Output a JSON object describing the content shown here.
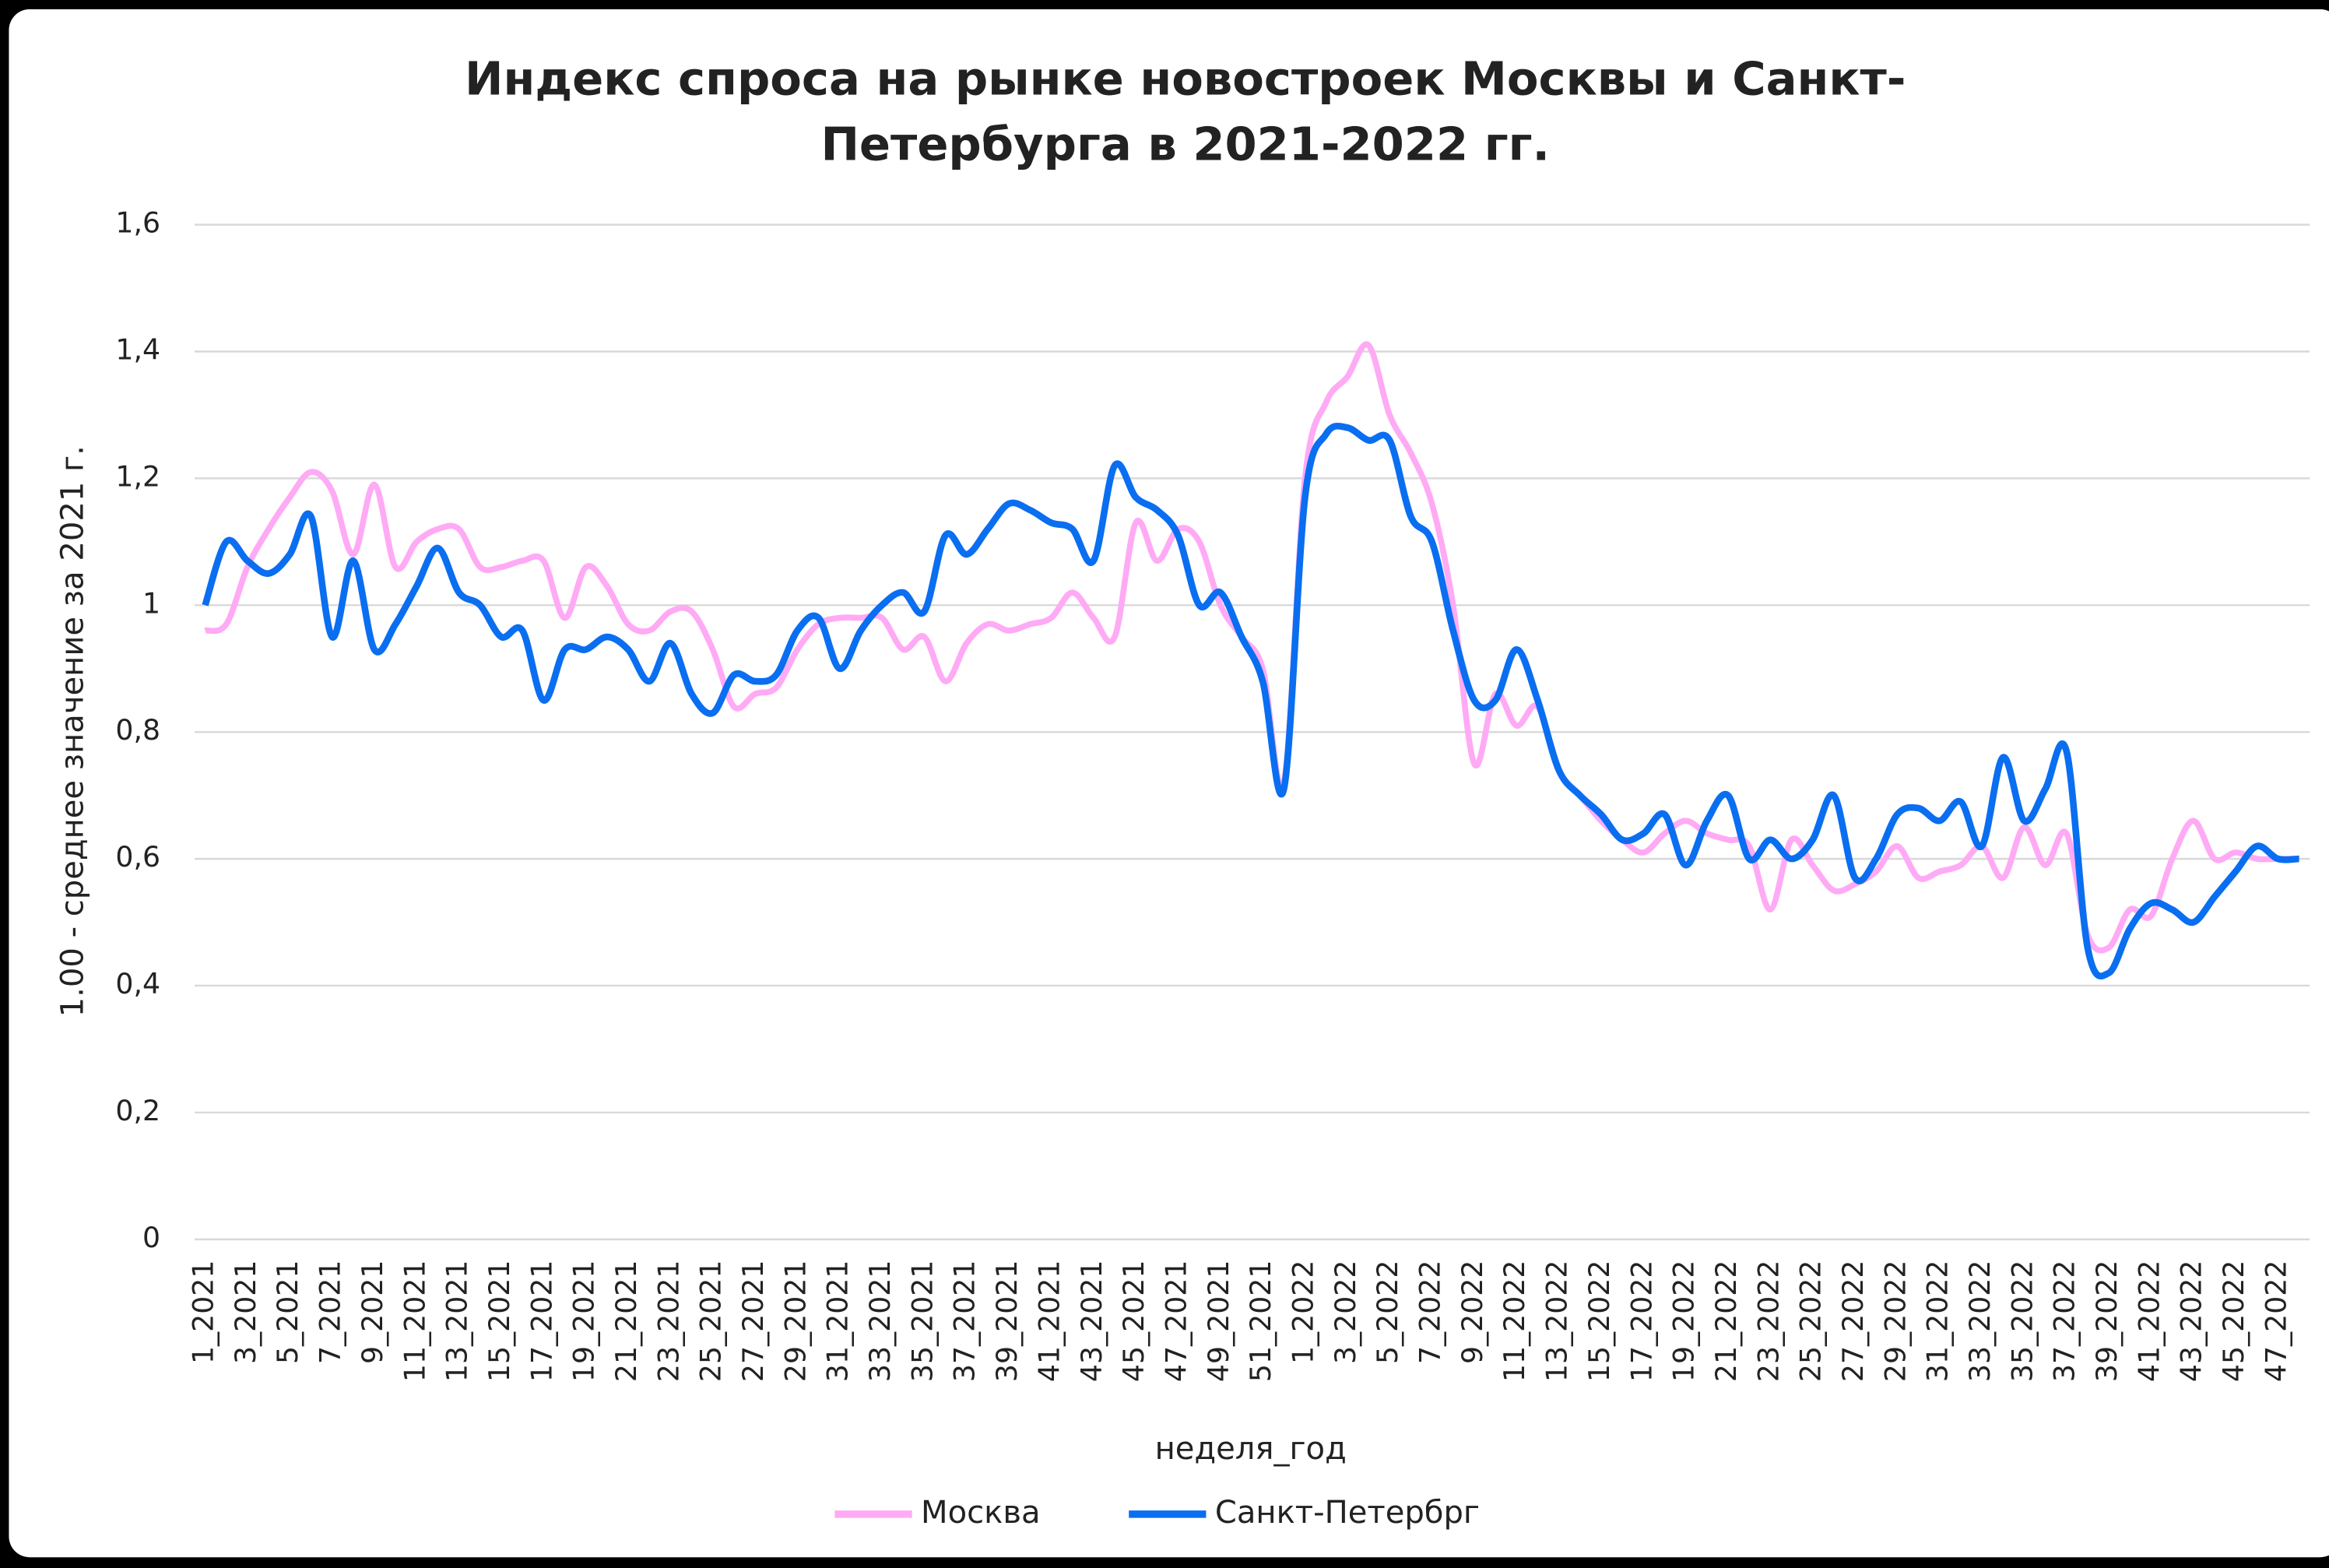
{
  "chart_data": {
    "type": "line",
    "title": [
      "Индекс спроса на рынке новостроек Москвы и Санкт-",
      "Петербурга в 2021-2022 гг."
    ],
    "x_label": "неделя_год",
    "y_label": "1.00 - среднее значение за 2021 г.",
    "categories": [
      "1_2021",
      null,
      "3_2021",
      null,
      "5_2021",
      null,
      "7_2021",
      null,
      "9_2021",
      null,
      "11_2021",
      null,
      "13_2021",
      null,
      "15_2021",
      null,
      "17_2021",
      null,
      "19_2021",
      null,
      "21_2021",
      null,
      "23_2021",
      null,
      "25_2021",
      null,
      "27_2021",
      null,
      "29_2021",
      null,
      "31_2021",
      null,
      "33_2021",
      null,
      "35_2021",
      null,
      "37_2021",
      null,
      "39_2021",
      null,
      "41_2021",
      null,
      "43_2021",
      null,
      "45_2021",
      null,
      "47_2021",
      null,
      "49_2021",
      null,
      "51_2021",
      null,
      "1_2022",
      null,
      "3_2022",
      null,
      "5_2022",
      null,
      "7_2022",
      null,
      "9_2022",
      null,
      "11_2022",
      null,
      "13_2022",
      null,
      "15_2022",
      null,
      "17_2022",
      null,
      "19_2022",
      null,
      "21_2022",
      null,
      "23_2022",
      null,
      "25_2022",
      null,
      "27_2022",
      null,
      "29_2022",
      null,
      "31_2022",
      null,
      "33_2022",
      null,
      "35_2022",
      null,
      "37_2022",
      null,
      "39_2022",
      null,
      "41_2022",
      null,
      "43_2022",
      null,
      "45_2022",
      null,
      "47_2022",
      null
    ],
    "series": [
      {
        "name": "Москва",
        "color": "#ffaaf5",
        "values": [
          0.96,
          0.97,
          1.06,
          1.12,
          1.17,
          1.21,
          1.18,
          1.08,
          1.19,
          1.06,
          1.1,
          1.12,
          1.12,
          1.06,
          1.06,
          1.07,
          1.07,
          0.98,
          1.06,
          1.03,
          0.97,
          0.96,
          0.99,
          0.99,
          0.93,
          0.84,
          0.86,
          0.87,
          0.93,
          0.97,
          0.98,
          0.98,
          0.98,
          0.93,
          0.95,
          0.88,
          0.94,
          0.97,
          0.96,
          0.97,
          0.98,
          1.02,
          0.98,
          0.95,
          1.13,
          1.07,
          1.12,
          1.1,
          1.0,
          0.95,
          0.9,
          0.72,
          1.2,
          1.32,
          1.36,
          1.41,
          1.3,
          1.24,
          1.16,
          1.0,
          0.75,
          0.86,
          0.81,
          0.84,
          0.74,
          0.7,
          0.66,
          0.63,
          0.61,
          0.64,
          0.66,
          0.64,
          0.63,
          0.62,
          0.52,
          0.63,
          0.59,
          0.55,
          0.56,
          0.58,
          0.62,
          0.57,
          0.58,
          0.59,
          0.62,
          0.57,
          0.65,
          0.59,
          0.64,
          0.48,
          0.46,
          0.52,
          0.51,
          0.6,
          0.66,
          0.6,
          0.61,
          0.6,
          0.6,
          0.6
        ]
      },
      {
        "name": "Санкт-Петербрг",
        "color": "#0a6ef0",
        "values": [
          1.0,
          1.1,
          1.07,
          1.05,
          1.08,
          1.14,
          0.95,
          1.07,
          0.93,
          0.97,
          1.03,
          1.09,
          1.02,
          1.0,
          0.95,
          0.96,
          0.85,
          0.93,
          0.93,
          0.95,
          0.93,
          0.88,
          0.94,
          0.86,
          0.83,
          0.89,
          0.88,
          0.89,
          0.96,
          0.98,
          0.9,
          0.96,
          1.0,
          1.02,
          0.99,
          1.11,
          1.08,
          1.12,
          1.16,
          1.15,
          1.13,
          1.12,
          1.07,
          1.22,
          1.17,
          1.15,
          1.11,
          1.0,
          1.02,
          0.95,
          0.88,
          0.71,
          1.17,
          1.27,
          1.28,
          1.26,
          1.26,
          1.14,
          1.1,
          0.96,
          0.85,
          0.85,
          0.93,
          0.85,
          0.74,
          0.7,
          0.67,
          0.63,
          0.64,
          0.67,
          0.59,
          0.66,
          0.7,
          0.6,
          0.63,
          0.6,
          0.63,
          0.7,
          0.57,
          0.6,
          0.67,
          0.68,
          0.66,
          0.69,
          0.62,
          0.76,
          0.66,
          0.71,
          0.77,
          0.46,
          0.42,
          0.49,
          0.53,
          0.52,
          0.5,
          0.54,
          0.58,
          0.62,
          0.6,
          0.6
        ]
      }
    ],
    "ylim": [
      0,
      1.6
    ],
    "yticks": [
      0,
      {
        "value": 0.2,
        "label": "0,2"
      },
      {
        "value": 0.4,
        "label": "0,4"
      },
      {
        "value": 0.6,
        "label": "0,6"
      },
      {
        "value": 0.8,
        "label": "0,8"
      },
      1,
      {
        "value": 1.2,
        "label": "1,2"
      },
      {
        "value": 1.4,
        "label": "1,4"
      },
      {
        "value": 1.6,
        "label": "1,6"
      }
    ],
    "grid": true,
    "legend": "bottom"
  }
}
